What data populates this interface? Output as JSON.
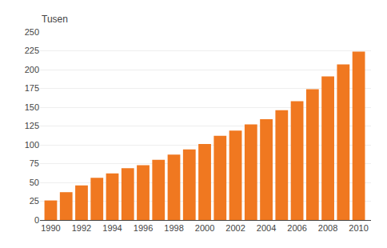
{
  "chart_data": {
    "type": "bar",
    "ylabel": "Tusen",
    "x": [
      1990,
      1991,
      1992,
      1993,
      1994,
      1995,
      1996,
      1997,
      1998,
      1999,
      2000,
      2001,
      2002,
      2003,
      2004,
      2005,
      2006,
      2007,
      2008,
      2009,
      2010
    ],
    "values": [
      26,
      37,
      46,
      56,
      62,
      69,
      73,
      80,
      87,
      94,
      101,
      112,
      119,
      127,
      134,
      146,
      158,
      174,
      191,
      207,
      224
    ],
    "color": "#F07820",
    "xlim": [
      1989.3,
      2010.8
    ],
    "xticks": [
      1990,
      1992,
      1994,
      1996,
      1998,
      2000,
      2002,
      2004,
      2006,
      2008,
      2010
    ],
    "ylim": [
      0,
      250
    ],
    "yticks": [
      0,
      25,
      50,
      75,
      100,
      125,
      150,
      175,
      200,
      225,
      250
    ],
    "grid": true
  }
}
